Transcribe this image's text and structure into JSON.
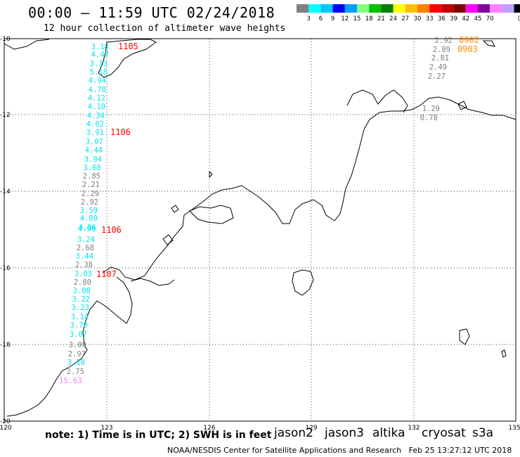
{
  "header": {
    "title": "00:00 – 11:59 UTC 02/24/2018",
    "subtitle": "12 hour collection of altimeter wave heights"
  },
  "colorbar": {
    "colors": [
      "#808080",
      "#00ffff",
      "#00c8ff",
      "#0000ff",
      "#00a0ff",
      "#80ff80",
      "#00c000",
      "#008000",
      "#ffff00",
      "#ffc000",
      "#ff8000",
      "#ff0000",
      "#c00000",
      "#800000",
      "#ff00ff",
      "#8000a0",
      "#ff80ff",
      "#c0a0ff",
      "#000000"
    ],
    "labels": [
      "3",
      "6",
      "9",
      "12",
      "15",
      "18",
      "21",
      "24",
      "27",
      "30",
      "33",
      "36",
      "39",
      "42",
      "45",
      "70"
    ],
    "unit": "(ft)"
  },
  "axes": {
    "lon_ticks": [
      "120",
      "123",
      "126",
      "129",
      "132",
      "135"
    ],
    "lat_ticks": [
      "-10",
      "-12",
      "-14",
      "-16",
      "-18",
      "-20"
    ]
  },
  "tracks": [
    {
      "color": "#00e5ee",
      "points": [
        {
          "t": "3.18",
          "c": "#00e5ee"
        },
        {
          "t": "4.47",
          "c": "#00e5ee"
        },
        {
          "t": "3.13",
          "c": "#00e5ee"
        },
        {
          "t": "5.18",
          "c": "#00e5ee"
        },
        {
          "t": "4.94",
          "c": "#00e5ee"
        },
        {
          "t": "4.78",
          "c": "#00e5ee"
        },
        {
          "t": "4.12",
          "c": "#00e5ee"
        },
        {
          "t": "4.10",
          "c": "#00e5ee"
        },
        {
          "t": "4.34",
          "c": "#00e5ee"
        },
        {
          "t": "4.02",
          "c": "#00e5ee"
        },
        {
          "t": "3.91",
          "c": "#00e5ee"
        },
        {
          "t": "3.07",
          "c": "#00e5ee"
        },
        {
          "t": "4.44",
          "c": "#00e5ee"
        },
        {
          "t": "3.94",
          "c": "#00e5ee"
        },
        {
          "t": "3.60",
          "c": "#00e5ee"
        },
        {
          "t": "2.85",
          "c": "#808080"
        },
        {
          "t": "2.21",
          "c": "#808080"
        },
        {
          "t": "2.29",
          "c": "#808080"
        },
        {
          "t": "2.92",
          "c": "#808080"
        },
        {
          "t": "3.59",
          "c": "#00e5ee"
        },
        {
          "t": "4.09",
          "c": "#00e5ee"
        },
        {
          "t": "4.86",
          "c": "#00e5ee"
        },
        {
          "t": "4.98",
          "c": "#00e5ee"
        },
        {
          "t": "3.24",
          "c": "#00e5ee"
        },
        {
          "t": "2.68",
          "c": "#808080"
        },
        {
          "t": "3.44",
          "c": "#00e5ee"
        },
        {
          "t": "2.38",
          "c": "#808080"
        },
        {
          "t": "3.03",
          "c": "#00e5ee"
        },
        {
          "t": "2.80",
          "c": "#808080"
        },
        {
          "t": "3.08",
          "c": "#00e5ee"
        },
        {
          "t": "3.22",
          "c": "#00e5ee"
        },
        {
          "t": "3.23",
          "c": "#00e5ee"
        },
        {
          "t": "3.14",
          "c": "#00e5ee"
        },
        {
          "t": "3.70",
          "c": "#00e5ee"
        },
        {
          "t": "3.07",
          "c": "#00e5ee"
        },
        {
          "t": "3.00",
          "c": "#808080"
        },
        {
          "t": "2.97",
          "c": "#808080"
        },
        {
          "t": "3.10",
          "c": "#00e5ee"
        },
        {
          "t": "2.75",
          "c": "#808080"
        },
        {
          "t": "15.63",
          "c": "#ee82ee"
        }
      ],
      "times": [
        {
          "t": "1105",
          "c": "#ff0000"
        },
        {
          "t": "1106",
          "c": "#ff0000"
        },
        {
          "t": "1106",
          "c": "#ff0000"
        },
        {
          "t": "1107",
          "c": "#ff0000"
        }
      ]
    },
    {
      "color": "#808080",
      "points": [
        {
          "t": "2.92",
          "c": "#808080"
        },
        {
          "t": "2.89",
          "c": "#808080"
        },
        {
          "t": "2.81",
          "c": "#808080"
        },
        {
          "t": "2.49",
          "c": "#808080"
        },
        {
          "t": "2.27",
          "c": "#808080"
        },
        {
          "t": "1.29",
          "c": "#808080"
        },
        {
          "t": "0.78",
          "c": "#808080"
        }
      ],
      "times": [
        {
          "t": "0902",
          "c": "#ff8c00"
        },
        {
          "t": "0903",
          "c": "#ff8c00"
        }
      ]
    }
  ],
  "notes": "note: 1) Time is in UTC; 2) SWH is in feet",
  "satellites": [
    {
      "name": "jason2",
      "color": "#0000ff"
    },
    {
      "name": "jason3",
      "color": "#008000"
    },
    {
      "name": "altika",
      "color": "#ff8c00"
    },
    {
      "name": "cryosat",
      "color": "#ff0000"
    },
    {
      "name": "s3a",
      "color": "#8b0000"
    }
  ],
  "footer": {
    "agency": "NOAA/NESDIS Center for Satellite Applications and Research",
    "timestamp": "Feb 25 13:27:12 UTC 2018"
  }
}
